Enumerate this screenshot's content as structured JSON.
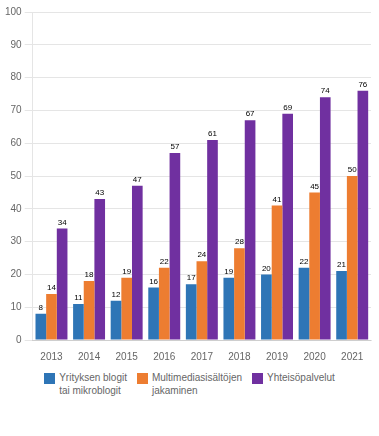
{
  "chart_data": {
    "type": "bar",
    "categories": [
      "2013",
      "2014",
      "2015",
      "2016",
      "2017",
      "2018",
      "2019",
      "2020",
      "2021"
    ],
    "series": [
      {
        "name": "Yrityksen blogit\ntai mikroblogit",
        "color": "#2E75B6",
        "values": [
          8,
          11,
          12,
          16,
          17,
          19,
          20,
          22,
          21
        ]
      },
      {
        "name": "Multimediasisältöjen\njakaminen",
        "color": "#ED7D31",
        "values": [
          14,
          18,
          19,
          22,
          24,
          28,
          41,
          45,
          50
        ]
      },
      {
        "name": "Yhteisöpalvelut",
        "color": "#7030A0",
        "values": [
          34,
          43,
          47,
          57,
          61,
          67,
          69,
          74,
          76
        ]
      }
    ],
    "ylim": [
      0,
      100
    ],
    "yticks": [
      0,
      10,
      20,
      30,
      40,
      50,
      60,
      70,
      80,
      90,
      100
    ],
    "grid": true,
    "legend": "bottom",
    "data_labels": true
  }
}
